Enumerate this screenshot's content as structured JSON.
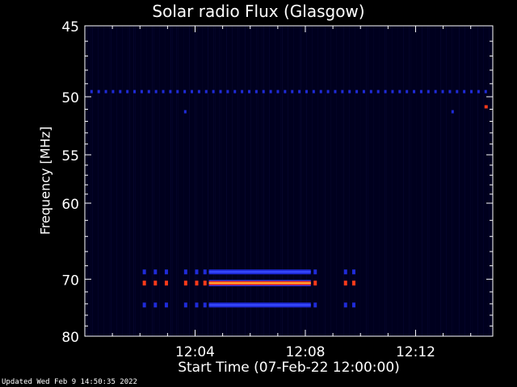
{
  "chart_data": {
    "type": "heatmap",
    "title": "Solar radio Flux (Glasgow)",
    "xlabel": "Start Time (07-Feb-22 12:00:00)",
    "ylabel": "Frequency [MHz]",
    "x_ticks": [
      "12:04",
      "12:08",
      "12:12"
    ],
    "x_tick_minutes": [
      4,
      8,
      12
    ],
    "x_range_minutes": [
      0,
      14.8
    ],
    "y_ticks": [
      45,
      50,
      55,
      60,
      70,
      80
    ],
    "y_range_mhz": [
      45,
      80
    ],
    "y_scale": "reciprocal",
    "colormap": "black-blue-red-yellow",
    "grid": false,
    "features": [
      {
        "kind": "dashed-band",
        "freq_mhz": 49.6,
        "t_start_min": 0.2,
        "t_end_min": 14.7,
        "intensity": "medium",
        "color": "#1f2bd8"
      },
      {
        "kind": "band",
        "freq_mhz": 68.9,
        "t_start_min": 4.5,
        "t_end_min": 8.2,
        "intensity": "medium",
        "color": "#1f2bd8"
      },
      {
        "kind": "band",
        "freq_mhz": 70.6,
        "t_start_min": 4.5,
        "t_end_min": 8.2,
        "intensity": "high",
        "color": "#ff3a1a"
      },
      {
        "kind": "band",
        "freq_mhz": 74.2,
        "t_start_min": 4.5,
        "t_end_min": 8.2,
        "intensity": "medium",
        "color": "#1f2bd8"
      },
      {
        "kind": "pulses",
        "freq_mhz": [
          68.9,
          70.6,
          74.2
        ],
        "t_min": [
          2.1,
          2.5,
          2.9,
          3.6,
          4.0,
          4.3,
          8.3,
          9.4,
          9.7
        ]
      }
    ]
  },
  "footer": "Updated Wed Feb  9 14:50:35 2022"
}
